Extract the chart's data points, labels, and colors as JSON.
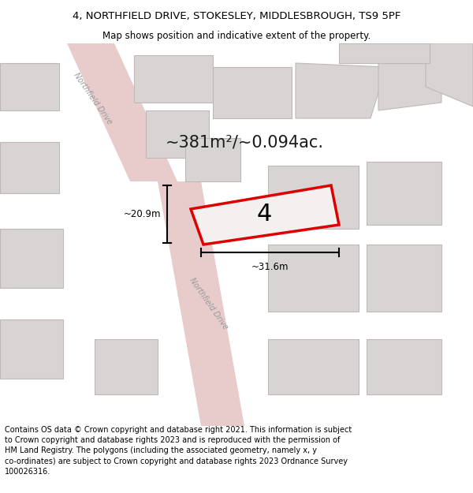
{
  "title": "4, NORTHFIELD DRIVE, STOKESLEY, MIDDLESBROUGH, TS9 5PF",
  "subtitle": "Map shows position and indicative extent of the property.",
  "footer": "Contains OS data © Crown copyright and database right 2021. This information is subject\nto Crown copyright and database rights 2023 and is reproduced with the permission of\nHM Land Registry. The polygons (including the associated geometry, namely x, y\nco-ordinates) are subject to Crown copyright and database rights 2023 Ordnance Survey\n100026316.",
  "area_text": "~381m²/~0.094ac.",
  "dim_width": "~31.6m",
  "dim_height": "~20.9m",
  "property_number": "4",
  "map_bg": "#f2f0f0",
  "road_color": "#e8cccc",
  "building_color": "#d8d4d4",
  "building_edge": "#c0b8b8",
  "highlight_color": "#dd0000",
  "highlight_fill": "#f5f0f0",
  "title_fontsize": 9.5,
  "subtitle_fontsize": 8.5,
  "footer_fontsize": 7.0
}
